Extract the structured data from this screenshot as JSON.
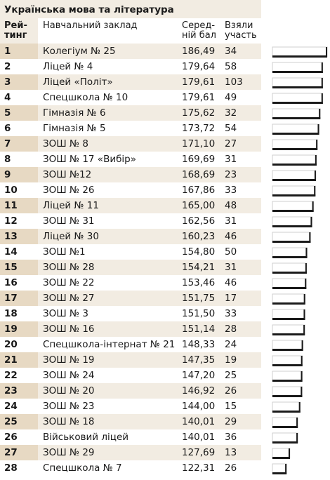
{
  "chart_data": {
    "type": "table",
    "title": "Українська мова та література",
    "columns": {
      "rank": "Рей-\nтинг",
      "school": "Навчальний заклад",
      "score": "Серед-\nній бал",
      "participants": "Взяли\nучасть"
    },
    "rows": [
      {
        "rank": "1",
        "school": "Колегіум № 25",
        "score": "186,49",
        "value": 186.49,
        "participants": "34"
      },
      {
        "rank": "2",
        "school": "Ліцей № 4",
        "score": "179,64",
        "value": 179.64,
        "participants": "58"
      },
      {
        "rank": "3",
        "school": "Ліцей «Політ»",
        "score": "179,61",
        "value": 179.61,
        "participants": "103"
      },
      {
        "rank": "4",
        "school": "Спецшкола № 10",
        "score": "179,61",
        "value": 179.61,
        "participants": "49"
      },
      {
        "rank": "5",
        "school": "Гімназія № 6",
        "score": "175,62",
        "value": 175.62,
        "participants": "32"
      },
      {
        "rank": "6",
        "school": "Гімназія № 5",
        "score": "173,72",
        "value": 173.72,
        "participants": "54"
      },
      {
        "rank": "7",
        "school": "ЗОШ № 8",
        "score": "171,10",
        "value": 171.1,
        "participants": "27"
      },
      {
        "rank": "8",
        "school": "ЗОШ № 17 «Вибір»",
        "score": "169,69",
        "value": 169.69,
        "participants": "31"
      },
      {
        "rank": "9",
        "school": "ЗОШ №12",
        "score": "168,69",
        "value": 168.69,
        "participants": "23"
      },
      {
        "rank": "10",
        "school": "ЗОШ № 26",
        "score": "167,86",
        "value": 167.86,
        "participants": "33"
      },
      {
        "rank": "11",
        "school": "Ліцей № 11",
        "score": "165,00",
        "value": 165.0,
        "participants": "48"
      },
      {
        "rank": "12",
        "school": "ЗОШ № 31",
        "score": "162,56",
        "value": 162.56,
        "participants": "31"
      },
      {
        "rank": "13",
        "school": "Ліцей № 30",
        "score": "160,23",
        "value": 160.23,
        "participants": "46"
      },
      {
        "rank": "14",
        "school": "ЗОШ №1",
        "score": "154,80",
        "value": 154.8,
        "participants": "50"
      },
      {
        "rank": "15",
        "school": "ЗОШ № 28",
        "score": "154,21",
        "value": 154.21,
        "participants": "31"
      },
      {
        "rank": "16",
        "school": "ЗОШ № 22",
        "score": "153,46",
        "value": 153.46,
        "participants": "46"
      },
      {
        "rank": "17",
        "school": "ЗОШ № 27",
        "score": "151,75",
        "value": 151.75,
        "participants": "17"
      },
      {
        "rank": "18",
        "school": "ЗОШ № 3",
        "score": "151,50",
        "value": 151.5,
        "participants": "33"
      },
      {
        "rank": "19",
        "school": "ЗОШ № 16",
        "score": "151,14",
        "value": 151.14,
        "participants": "28"
      },
      {
        "rank": "20",
        "school": "Спецшкола-інтернат № 21",
        "score": "148,33",
        "value": 148.33,
        "participants": "24"
      },
      {
        "rank": "21",
        "school": "ЗОШ № 19",
        "score": "147,35",
        "value": 147.35,
        "participants": "19"
      },
      {
        "rank": "22",
        "school": "ЗОШ № 24",
        "score": "147,20",
        "value": 147.2,
        "participants": "25"
      },
      {
        "rank": "23",
        "school": "ЗОШ № 20",
        "score": "146,92",
        "value": 146.92,
        "participants": "26"
      },
      {
        "rank": "24",
        "school": "ЗОШ № 23",
        "score": "144,00",
        "value": 144.0,
        "participants": "15"
      },
      {
        "rank": "25",
        "school": "ЗОШ № 18",
        "score": "140,01",
        "value": 140.01,
        "participants": "29"
      },
      {
        "rank": "26",
        "school": "Військовий ліцей",
        "score": "140,01",
        "value": 140.01,
        "participants": "36"
      },
      {
        "rank": "27",
        "school": "ЗОШ № 29",
        "score": "127,69",
        "value": 127.69,
        "participants": "13"
      },
      {
        "rank": "28",
        "school": "Спецшкола № 7",
        "score": "122,31",
        "value": 122.31,
        "participants": "26"
      }
    ]
  },
  "colors": {
    "band_light": "#f2ece2",
    "band_rank": "#e7d9c3",
    "bar_fill": "#1a1a1a",
    "bar_outline": "#cfcfcf"
  }
}
